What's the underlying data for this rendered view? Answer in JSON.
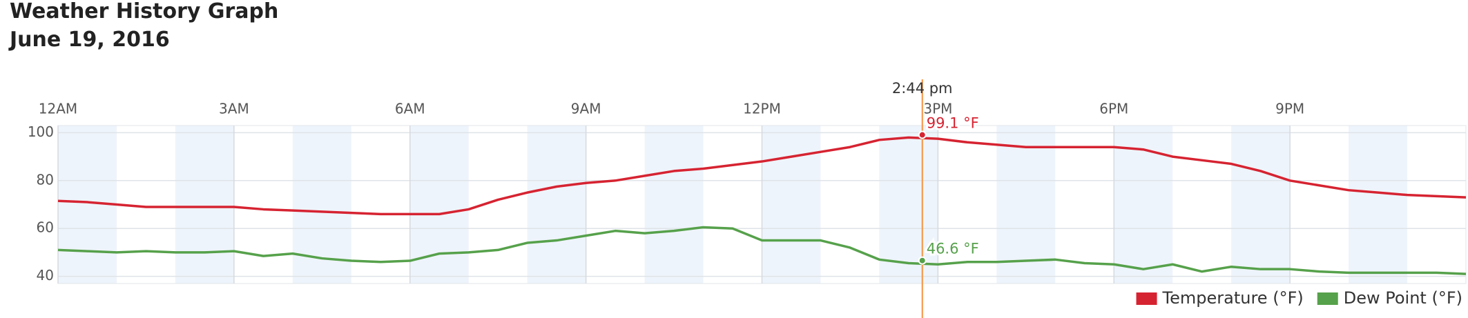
{
  "chart_data": {
    "type": "line",
    "title": "Weather History Graph",
    "subtitle": "June 19, 2016",
    "x": [
      0,
      0.5,
      1,
      1.5,
      2,
      2.5,
      3,
      3.5,
      4,
      4.5,
      5,
      5.5,
      6,
      6.5,
      7,
      7.5,
      8,
      8.5,
      9,
      9.5,
      10,
      10.5,
      11,
      11.5,
      12,
      12.5,
      13,
      13.5,
      14,
      14.5,
      15,
      15.5,
      16,
      16.5,
      17,
      17.5,
      18,
      18.5,
      19,
      19.5,
      20,
      20.5,
      21,
      21.5,
      22,
      22.5,
      23,
      23.5,
      24
    ],
    "series": [
      {
        "name": "Temperature (°F)",
        "color": "#d62331",
        "values": [
          71.5,
          71,
          70,
          69,
          69,
          69,
          69,
          68,
          67.5,
          67,
          66.5,
          66,
          66,
          66,
          68,
          72,
          75,
          77.5,
          79,
          80,
          82,
          84,
          85,
          86.5,
          88,
          90,
          92,
          94,
          97,
          98,
          97.5,
          96,
          95,
          94,
          94,
          94,
          94,
          93,
          90,
          88.5,
          87,
          84,
          80,
          78,
          76,
          75,
          74,
          73.5,
          73
        ],
        "cursor_value": 99.1,
        "cursor_label": "99.1 °F"
      },
      {
        "name": "Dew Point (°F)",
        "color": "#56a14b",
        "values": [
          51,
          50.5,
          50,
          50.5,
          50,
          50,
          50.5,
          48.5,
          49.5,
          47.5,
          46.5,
          46,
          46.5,
          49.5,
          50,
          51,
          54,
          55,
          57,
          59,
          58,
          59,
          60.5,
          60,
          55,
          55,
          55,
          52,
          47,
          45.5,
          45,
          46,
          46,
          46.5,
          47,
          45.5,
          45,
          43,
          45,
          42,
          44,
          43,
          43,
          42,
          41.5,
          41.5,
          41.5,
          41.5,
          41
        ],
        "cursor_value": 46.6,
        "cursor_label": "46.6 °F"
      }
    ],
    "cursor": {
      "x": 14.7333,
      "label": "2:44 pm",
      "color": "#f7913d"
    },
    "xlim": [
      0,
      24
    ],
    "xticks": [
      {
        "value": 0,
        "label": "12AM"
      },
      {
        "value": 3,
        "label": "3AM"
      },
      {
        "value": 6,
        "label": "6AM"
      },
      {
        "value": 9,
        "label": "9AM"
      },
      {
        "value": 12,
        "label": "12PM"
      },
      {
        "value": 15,
        "label": "3PM"
      },
      {
        "value": 18,
        "label": "6PM"
      },
      {
        "value": 21,
        "label": "9PM"
      }
    ],
    "ylim": [
      37,
      103
    ],
    "yticks": [
      40,
      60,
      80,
      100
    ],
    "grid": true,
    "legend": "bottom-right"
  }
}
